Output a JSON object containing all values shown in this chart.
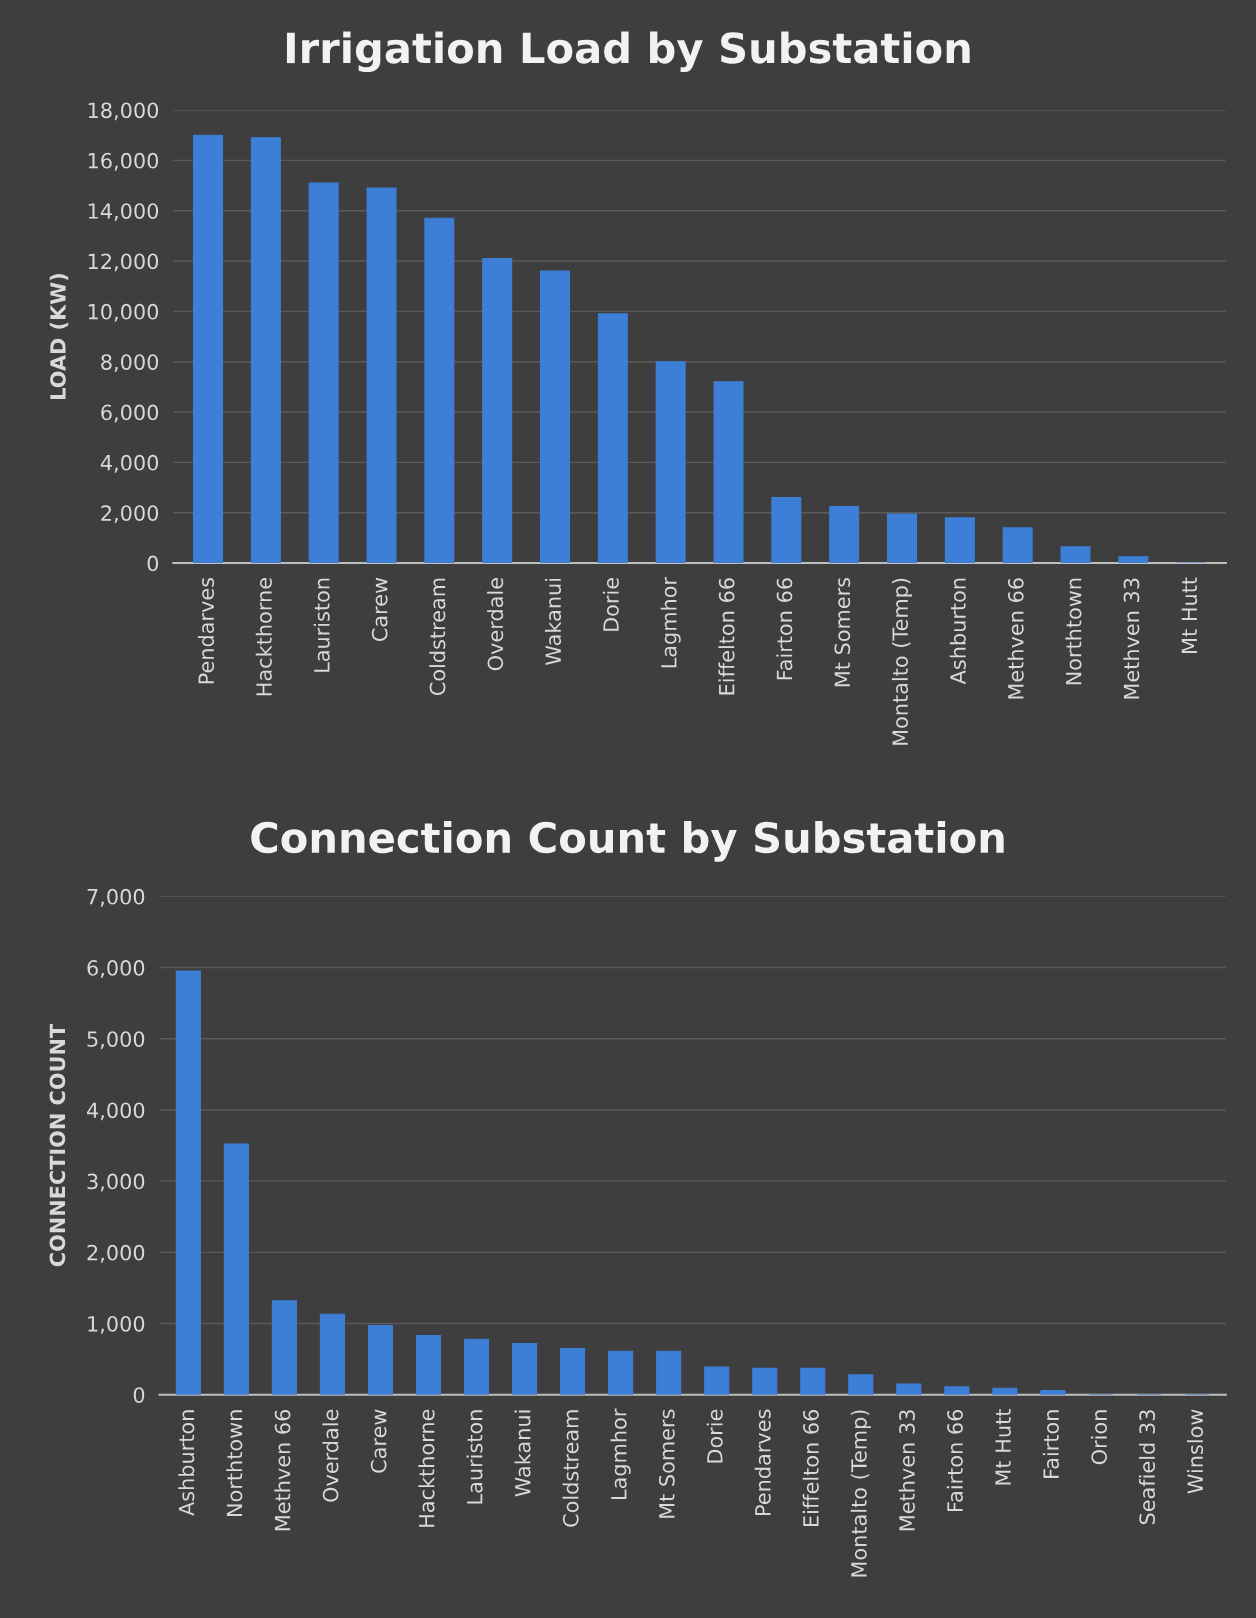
{
  "chart_data": [
    {
      "type": "bar",
      "title": "Irrigation Load by Substation",
      "ylabel": "LOAD (KW)",
      "color": "#3d7fd6",
      "grid": "y",
      "categories": [
        "Pendarves",
        "Hackthorne",
        "Lauriston",
        "Carew",
        "Coldstream",
        "Overdale",
        "Wakanui",
        "Dorie",
        "Lagmhor",
        "Eiffelton 66",
        "Fairton 66",
        "Mt Somers",
        "Montalto (Temp)",
        "Ashburton",
        "Methven 66",
        "Northtown",
        "Methven 33",
        "Mt Hutt"
      ],
      "values": [
        17000,
        16900,
        15100,
        14900,
        13700,
        12100,
        11600,
        9900,
        8000,
        7200,
        2600,
        2250,
        1950,
        1800,
        1400,
        650,
        250,
        0
      ],
      "ylim": [
        0,
        18000
      ],
      "yticks": [
        0,
        {
          "value": 2000,
          "label": "2,000"
        },
        {
          "value": 4000,
          "label": "4,000"
        },
        {
          "value": 6000,
          "label": "6,000"
        },
        {
          "value": 8000,
          "label": "8,000"
        },
        {
          "value": 10000,
          "label": "10,000"
        },
        {
          "value": 12000,
          "label": "12,000"
        },
        {
          "value": 14000,
          "label": "14,000"
        },
        {
          "value": 16000,
          "label": "16,000"
        },
        {
          "value": 18000,
          "label": "18,000"
        }
      ]
    },
    {
      "type": "bar",
      "title": "Connection Count by Substation",
      "ylabel": "CONNECTION COUNT",
      "color": "#3d7fd6",
      "grid": "y",
      "categories": [
        "Ashburton",
        "Northtown",
        "Methven 66",
        "Overdale",
        "Carew",
        "Hackthorne",
        "Lauriston",
        "Wakanui",
        "Coldstream",
        "Lagmhor",
        "Mt Somers",
        "Dorie",
        "Pendarves",
        "Eiffelton 66",
        "Montalto (Temp)",
        "Methven 33",
        "Fairton 66",
        "Mt Hutt",
        "Fairton",
        "Orion",
        "Seafield 33",
        "Winslow"
      ],
      "values": [
        5950,
        3520,
        1320,
        1130,
        970,
        830,
        780,
        720,
        650,
        610,
        610,
        390,
        370,
        370,
        280,
        150,
        110,
        90,
        60,
        0,
        0,
        0
      ],
      "ylim": [
        0,
        7000
      ],
      "yticks": [
        0,
        {
          "value": 1000,
          "label": "1,000"
        },
        {
          "value": 2000,
          "label": "2,000"
        },
        {
          "value": 3000,
          "label": "3,000"
        },
        {
          "value": 4000,
          "label": "4,000"
        },
        {
          "value": 5000,
          "label": "5,000"
        },
        {
          "value": 6000,
          "label": "6,000"
        },
        {
          "value": 7000,
          "label": "7,000"
        }
      ]
    }
  ]
}
